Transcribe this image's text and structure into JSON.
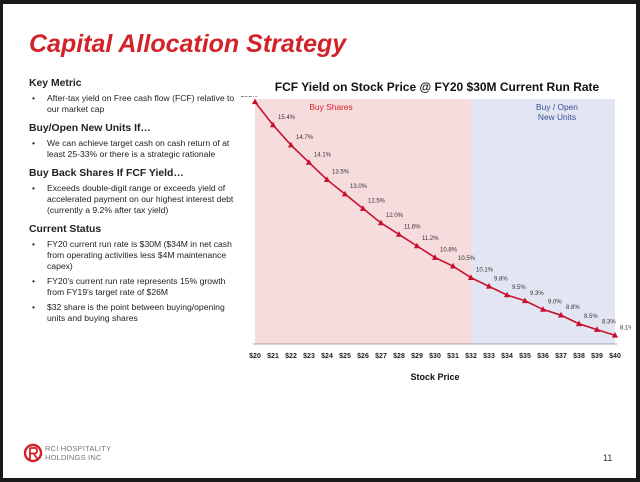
{
  "slide": {
    "title": "Capital Allocation Strategy",
    "page_number": "11",
    "logo_text_line1": "RCI HOSPITALITY",
    "logo_text_line2": "HOLDINGS INC",
    "accent_color": "#d2232a"
  },
  "left_panel": {
    "sections": [
      {
        "heading": "Key Metric",
        "bullets": [
          "After-tax yield on Free cash flow (FCF) relative to our market cap"
        ]
      },
      {
        "heading": "Buy/Open New Units If…",
        "bullets": [
          "We can achieve target cash on cash return of at least 25-33% or there is a strategic rationale"
        ]
      },
      {
        "heading": "Buy Back Shares If FCF Yield…",
        "bullets": [
          "Exceeds double-digit range or exceeds yield of accelerated payment on our highest interest debt (currently a 9.2% after tax yield)"
        ]
      },
      {
        "heading": "Current Status",
        "bullets": [
          "FY20 current run rate is $30M ($34M in net cash from operating activities less $4M maintenance capex)",
          "FY20's current run rate represents 15% growth from FY19's target rate of $26M",
          "$32 share is the point between buying/opening units and buying shares"
        ]
      }
    ]
  },
  "chart_data": {
    "type": "line",
    "title": "FCF Yield on Stock Price @ FY20 $30M Current Run Rate",
    "xlabel": "Stock Price",
    "ylabel": "",
    "x": [
      "$20",
      "$21",
      "$22",
      "$23",
      "$24",
      "$25",
      "$26",
      "$27",
      "$28",
      "$29",
      "$30",
      "$31",
      "$32",
      "$33",
      "$34",
      "$35",
      "$36",
      "$37",
      "$38",
      "$39",
      "$40"
    ],
    "series": [
      {
        "name": "",
        "values": [
          16.2,
          15.4,
          14.7,
          14.1,
          13.5,
          13.0,
          12.5,
          12.0,
          11.6,
          11.2,
          10.8,
          10.5,
          10.1,
          9.8,
          9.5,
          9.3,
          9.0,
          8.8,
          8.5,
          8.3,
          8.1
        ],
        "labels": [
          "16.2%",
          "15.4%",
          "14.7%",
          "14.1%",
          "13.5%",
          "13.0%",
          "12.5%",
          "12.0%",
          "11.6%",
          "11.2%",
          "10.8%",
          "10.5%",
          "10.1%",
          "9.8%",
          "9.5%",
          "9.3%",
          "9.0%",
          "8.8%",
          "8.5%",
          "8.3%",
          "8.1%"
        ],
        "color": "#c8102e"
      }
    ],
    "ylim": [
      7.8,
      16.3
    ],
    "regions": [
      {
        "label": "Buy Shares",
        "from": "$20",
        "to": "$32",
        "color": "#f7dcdd",
        "text_color": "#d2232a"
      },
      {
        "label": "Buy / Open New Units",
        "from": "$32",
        "to": "$40",
        "color": "#e2e6f3",
        "text_color": "#3a4e9a"
      }
    ],
    "grid": false
  }
}
